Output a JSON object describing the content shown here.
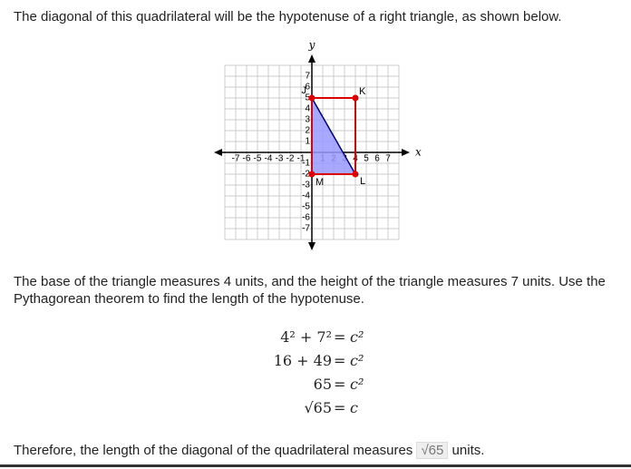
{
  "intro": "The diagonal of this quadrilateral will be the hypotenuse of a right triangle, as shown below.",
  "graph": {
    "x_label": "x",
    "y_label": "y",
    "xlim": [
      -8,
      8
    ],
    "ylim": [
      -8,
      8
    ],
    "xticks": [
      -7,
      -6,
      -5,
      -4,
      -3,
      -2,
      -1,
      1,
      2,
      3,
      4,
      5,
      6,
      7
    ],
    "yticks": [
      7,
      6,
      5,
      4,
      3,
      2,
      1,
      -1,
      -2,
      -3,
      -4,
      -5,
      -6,
      -7
    ],
    "points": [
      {
        "label": "J",
        "x": 0,
        "y": 5
      },
      {
        "label": "K",
        "x": 4,
        "y": 5
      },
      {
        "label": "L",
        "x": 4,
        "y": -2
      },
      {
        "label": "M",
        "x": 0,
        "y": -2
      }
    ]
  },
  "explanation": "The base of the triangle measures 4 units, and the height of the triangle measures 7 units. Use the Pythagorean theorem to find the length of the hypotenuse.",
  "equations": [
    {
      "lhs": "4² + 7²",
      "eq": "=",
      "rhs": "c²"
    },
    {
      "lhs": "16 + 49",
      "eq": "=",
      "rhs": "c²"
    },
    {
      "lhs": "65",
      "eq": "=",
      "rhs": "c²"
    },
    {
      "lhs": "√65",
      "eq": "=",
      "rhs": "c"
    }
  ],
  "conclusion": {
    "text": "Therefore, the length of the diagonal of the quadrilateral measures",
    "answer": "√65",
    "unit": "units."
  }
}
